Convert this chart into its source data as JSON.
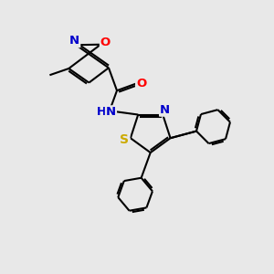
{
  "bg_color": "#e8e8e8",
  "bond_color": "#000000",
  "bond_width": 1.5,
  "atom_colors": {
    "C": "#000000",
    "N": "#0000cc",
    "O": "#ff0000",
    "S": "#ccaa00",
    "H": "#0000cc"
  },
  "font_size": 9.5,
  "figsize": [
    3.0,
    3.0
  ],
  "dpi": 100
}
